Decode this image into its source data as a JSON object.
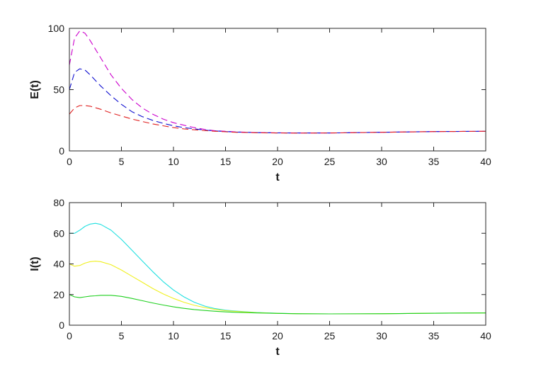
{
  "chart_data": [
    {
      "type": "line",
      "title": "",
      "xlabel": "t",
      "ylabel": "E(t)",
      "xlim": [
        0,
        40
      ],
      "ylim": [
        0,
        100
      ],
      "xticks": [
        0,
        5,
        10,
        15,
        20,
        25,
        30,
        35,
        40
      ],
      "yticks": [
        0,
        50,
        100
      ],
      "grid": false,
      "line_style": "dashed",
      "x": [
        0,
        0.5,
        1,
        1.5,
        2,
        3,
        4,
        5,
        6,
        7,
        8,
        9,
        10,
        11,
        12,
        13,
        14,
        15,
        16,
        18,
        20,
        22,
        25,
        30,
        35,
        40
      ],
      "series": [
        {
          "color": "#cc00cc",
          "values": [
            70,
            92,
            98,
            96,
            90,
            76,
            62,
            51,
            42,
            35,
            30,
            26,
            23,
            21,
            19,
            17.5,
            16.5,
            16,
            15.5,
            15,
            14.8,
            14.6,
            14.6,
            15.2,
            15.8,
            16
          ]
        },
        {
          "color": "#1010d0",
          "values": [
            50,
            64,
            67,
            66,
            62,
            53,
            45,
            38,
            32,
            28,
            25,
            22.5,
            20.5,
            19,
            18,
            17,
            16.3,
            15.8,
            15.4,
            14.9,
            14.7,
            14.6,
            14.6,
            15.2,
            15.8,
            16
          ]
        },
        {
          "color": "#e02020",
          "values": [
            30,
            35,
            37,
            37,
            36.5,
            34,
            31,
            28.5,
            26,
            24,
            22,
            20.5,
            19,
            18,
            17.2,
            16.6,
            16,
            15.6,
            15.2,
            14.8,
            14.6,
            14.5,
            14.6,
            15.2,
            15.8,
            16
          ]
        }
      ]
    },
    {
      "type": "line",
      "title": "",
      "xlabel": "t",
      "ylabel": "I(t)",
      "xlim": [
        0,
        40
      ],
      "ylim": [
        0,
        80
      ],
      "xticks": [
        0,
        5,
        10,
        15,
        20,
        25,
        30,
        35,
        40
      ],
      "yticks": [
        0,
        20,
        40,
        60,
        80
      ],
      "grid": false,
      "line_style": "solid",
      "x": [
        0,
        0.5,
        1,
        1.5,
        2,
        2.5,
        3,
        4,
        5,
        6,
        7,
        8,
        9,
        10,
        11,
        12,
        13,
        14,
        15,
        16,
        18,
        20,
        22,
        25,
        30,
        35,
        40
      ],
      "series": [
        {
          "color": "#20e0e0",
          "values": [
            60,
            60,
            62,
            64.5,
            66,
            66.5,
            65.8,
            62,
            56,
            49,
            42,
            35,
            28.5,
            23,
            18.5,
            15,
            12.5,
            10.8,
            9.8,
            9.2,
            8.3,
            7.8,
            7.5,
            7.4,
            7.5,
            7.8,
            8
          ]
        },
        {
          "color": "#f0f020",
          "values": [
            40,
            38.5,
            39,
            40.5,
            41.5,
            41.8,
            41.5,
            39.5,
            36,
            32,
            28,
            24,
            20.5,
            17.5,
            15,
            13,
            11.5,
            10.3,
            9.5,
            9,
            8.2,
            7.7,
            7.5,
            7.4,
            7.5,
            7.8,
            8
          ]
        },
        {
          "color": "#20d020",
          "values": [
            20,
            18.5,
            18,
            18.5,
            19,
            19.2,
            19.5,
            19.5,
            18.8,
            17.5,
            16,
            14.5,
            13.2,
            12,
            11,
            10.2,
            9.6,
            9.1,
            8.7,
            8.4,
            8,
            7.7,
            7.5,
            7.4,
            7.5,
            7.8,
            8
          ]
        }
      ]
    }
  ]
}
